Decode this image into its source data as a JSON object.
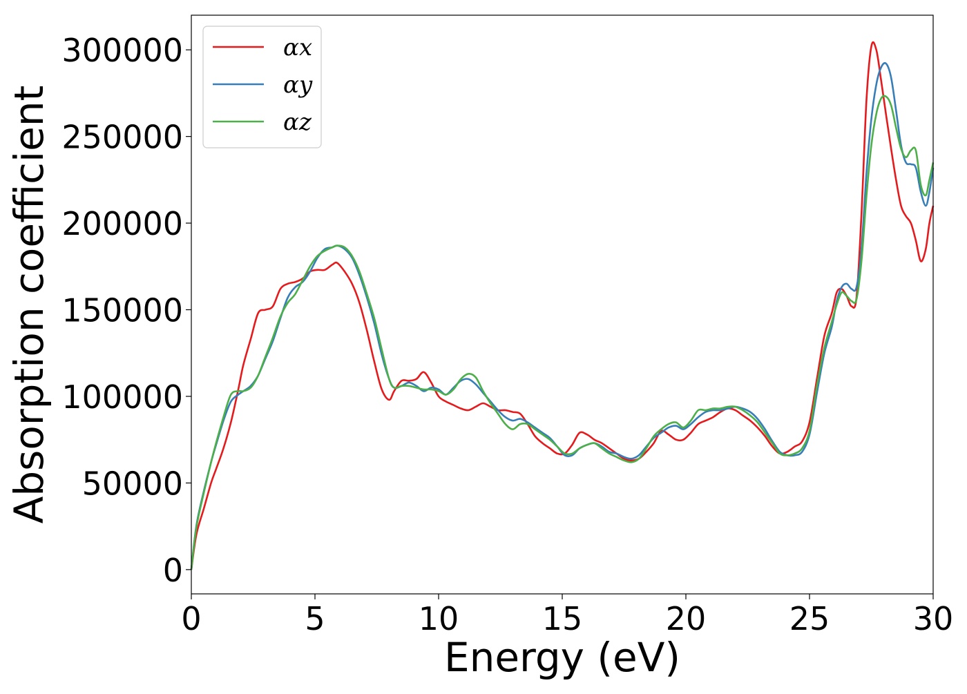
{
  "chart_data": {
    "type": "line",
    "title": "",
    "xlabel": "Energy (eV)",
    "ylabel": "Absorption coefficient",
    "xlim": [
      0,
      30
    ],
    "ylim": [
      -14000,
      320000
    ],
    "xticks": [
      "0",
      "5",
      "10",
      "15",
      "20",
      "25",
      "30"
    ],
    "yticks": [
      "0",
      "50000",
      "100000",
      "150000",
      "200000",
      "250000",
      "300000"
    ],
    "grid": false,
    "legend_position": "top-left",
    "series": [
      {
        "name": "αx",
        "color": "#e41a1c",
        "x": [
          0,
          0.2,
          0.5,
          0.8,
          1.0,
          1.3,
          1.6,
          1.9,
          2.1,
          2.4,
          2.7,
          3.0,
          3.3,
          3.6,
          3.9,
          4.2,
          4.5,
          4.8,
          5.1,
          5.4,
          5.7,
          5.9,
          6.2,
          6.5,
          6.8,
          7.1,
          7.4,
          7.7,
          8.0,
          8.2,
          8.5,
          8.8,
          9.1,
          9.4,
          9.7,
          10.0,
          10.3,
          10.6,
          10.9,
          11.2,
          11.5,
          11.8,
          12.1,
          12.4,
          12.7,
          13.0,
          13.3,
          13.6,
          13.9,
          14.2,
          14.5,
          14.8,
          15.1,
          15.4,
          15.7,
          16.0,
          16.3,
          16.6,
          16.9,
          17.2,
          17.5,
          17.8,
          18.1,
          18.4,
          18.7,
          19.0,
          19.3,
          19.6,
          19.9,
          20.2,
          20.5,
          20.8,
          21.1,
          21.4,
          21.7,
          22.0,
          22.3,
          22.6,
          22.9,
          23.2,
          23.5,
          23.8,
          24.1,
          24.4,
          24.7,
          25.0,
          25.3,
          25.6,
          25.9,
          26.1,
          26.3,
          26.5,
          26.7,
          26.9,
          27.1,
          27.3,
          27.5,
          27.7,
          27.9,
          28.1,
          28.3,
          28.5,
          28.7,
          28.9,
          29.1,
          29.3,
          29.5,
          29.7,
          29.85,
          30.0
        ],
        "y": [
          0,
          20000,
          35000,
          50000,
          58000,
          70000,
          85000,
          104000,
          118000,
          133000,
          148000,
          150000,
          152000,
          162000,
          165000,
          166000,
          168000,
          172000,
          173000,
          173000,
          176000,
          177000,
          172000,
          165000,
          154000,
          138000,
          120000,
          104000,
          98000,
          103000,
          109000,
          109000,
          110000,
          114000,
          108000,
          100000,
          97000,
          95000,
          93000,
          92000,
          94000,
          96000,
          94000,
          92000,
          92000,
          91000,
          90000,
          84000,
          77000,
          73000,
          70000,
          67000,
          67000,
          72000,
          79000,
          78000,
          75000,
          73000,
          70000,
          67000,
          64000,
          63000,
          64000,
          68000,
          73000,
          80000,
          78000,
          75000,
          75000,
          79000,
          84000,
          86000,
          88000,
          91000,
          93000,
          92000,
          89000,
          86000,
          82000,
          77000,
          71000,
          67000,
          68000,
          71000,
          74000,
          85000,
          110000,
          135000,
          148000,
          160000,
          162000,
          158000,
          152000,
          157000,
          205000,
          270000,
          302000,
          300000,
          282000,
          262000,
          243000,
          225000,
          210000,
          204000,
          200000,
          190000,
          178000,
          185000,
          200000,
          210000
        ]
      },
      {
        "name": "αy",
        "color": "#377eb8",
        "x": [
          0,
          0.2,
          0.5,
          0.8,
          1.0,
          1.3,
          1.6,
          1.9,
          2.1,
          2.4,
          2.7,
          3.0,
          3.3,
          3.6,
          3.9,
          4.2,
          4.5,
          4.8,
          5.1,
          5.4,
          5.7,
          5.9,
          6.2,
          6.5,
          6.8,
          7.1,
          7.4,
          7.7,
          8.0,
          8.2,
          8.5,
          8.8,
          9.1,
          9.4,
          9.7,
          10.0,
          10.3,
          10.6,
          10.9,
          11.2,
          11.5,
          11.8,
          12.1,
          12.4,
          12.7,
          13.0,
          13.3,
          13.6,
          13.9,
          14.2,
          14.5,
          14.8,
          15.1,
          15.4,
          15.7,
          16.0,
          16.3,
          16.6,
          16.9,
          17.2,
          17.5,
          17.8,
          18.1,
          18.4,
          18.7,
          19.0,
          19.3,
          19.6,
          19.9,
          20.2,
          20.5,
          20.8,
          21.1,
          21.4,
          21.7,
          22.0,
          22.3,
          22.6,
          22.9,
          23.2,
          23.5,
          23.8,
          24.1,
          24.4,
          24.7,
          25.0,
          25.3,
          25.6,
          25.9,
          26.1,
          26.3,
          26.5,
          26.7,
          26.9,
          27.1,
          27.3,
          27.5,
          27.7,
          27.9,
          28.1,
          28.3,
          28.5,
          28.7,
          28.9,
          29.1,
          29.3,
          29.5,
          29.7,
          29.85,
          30.0
        ],
        "y": [
          0,
          25000,
          45000,
          62000,
          72000,
          86000,
          97000,
          101000,
          103000,
          106000,
          112000,
          122000,
          132000,
          145000,
          157000,
          163000,
          166000,
          172000,
          180000,
          185000,
          186000,
          187000,
          185000,
          180000,
          170000,
          157000,
          142000,
          124000,
          110000,
          105000,
          106000,
          108000,
          106000,
          103000,
          105000,
          104000,
          101000,
          105000,
          109000,
          110000,
          107000,
          102000,
          97000,
          92000,
          88000,
          86000,
          87000,
          85000,
          82000,
          79000,
          76000,
          71000,
          66000,
          66000,
          70000,
          72000,
          73000,
          71000,
          68000,
          67000,
          65000,
          64000,
          66000,
          71000,
          76000,
          79000,
          82000,
          83000,
          81000,
          84000,
          88000,
          91000,
          92000,
          92000,
          93000,
          94000,
          93000,
          91000,
          87000,
          81000,
          74000,
          68000,
          66000,
          66000,
          68000,
          78000,
          102000,
          125000,
          140000,
          155000,
          163000,
          165000,
          162000,
          163000,
          185000,
          228000,
          260000,
          280000,
          290000,
          292000,
          284000,
          265000,
          245000,
          235000,
          234000,
          232000,
          218000,
          210000,
          218000,
          232000
        ]
      },
      {
        "name": "αz",
        "color": "#4daf4a",
        "x": [
          0,
          0.2,
          0.5,
          0.8,
          1.0,
          1.3,
          1.6,
          1.9,
          2.1,
          2.4,
          2.7,
          3.0,
          3.3,
          3.6,
          3.9,
          4.2,
          4.5,
          4.8,
          5.1,
          5.4,
          5.7,
          5.9,
          6.2,
          6.5,
          6.8,
          7.1,
          7.4,
          7.7,
          8.0,
          8.2,
          8.5,
          8.8,
          9.1,
          9.4,
          9.7,
          10.0,
          10.3,
          10.6,
          10.9,
          11.2,
          11.5,
          11.8,
          12.1,
          12.4,
          12.7,
          13.0,
          13.3,
          13.6,
          13.9,
          14.2,
          14.5,
          14.8,
          15.1,
          15.4,
          15.7,
          16.0,
          16.3,
          16.6,
          16.9,
          17.2,
          17.5,
          17.8,
          18.1,
          18.4,
          18.7,
          19.0,
          19.3,
          19.6,
          19.9,
          20.2,
          20.5,
          20.8,
          21.1,
          21.4,
          21.7,
          22.0,
          22.3,
          22.6,
          22.9,
          23.2,
          23.5,
          23.8,
          24.1,
          24.4,
          24.7,
          25.0,
          25.3,
          25.6,
          25.9,
          26.1,
          26.3,
          26.5,
          26.7,
          26.9,
          27.1,
          27.3,
          27.5,
          27.7,
          27.9,
          28.1,
          28.3,
          28.5,
          28.7,
          28.9,
          29.1,
          29.3,
          29.5,
          29.7,
          29.85,
          30.0
        ],
        "y": [
          0,
          24000,
          44000,
          62000,
          73000,
          88000,
          101000,
          103000,
          103000,
          105000,
          112000,
          123000,
          134000,
          146000,
          154000,
          159000,
          167000,
          175000,
          181000,
          184000,
          186000,
          187000,
          186000,
          181000,
          172000,
          159000,
          145000,
          127000,
          110000,
          105000,
          106000,
          106000,
          105000,
          104000,
          104000,
          103000,
          101000,
          104000,
          110000,
          113000,
          111000,
          103000,
          96000,
          90000,
          84000,
          81000,
          84000,
          84000,
          81000,
          78000,
          75000,
          71000,
          67000,
          67000,
          70000,
          72000,
          73000,
          70000,
          67000,
          65000,
          63000,
          62000,
          64000,
          70000,
          77000,
          81000,
          84000,
          85000,
          82000,
          86000,
          92000,
          92000,
          93000,
          93000,
          94000,
          94000,
          92000,
          89000,
          85000,
          79000,
          73000,
          67000,
          66000,
          67000,
          70000,
          80000,
          106000,
          128000,
          143000,
          153000,
          160000,
          158000,
          155000,
          156000,
          178000,
          215000,
          245000,
          263000,
          272000,
          273000,
          268000,
          255000,
          243000,
          238000,
          242000,
          242000,
          222000,
          216000,
          225000,
          235000
        ]
      }
    ]
  }
}
